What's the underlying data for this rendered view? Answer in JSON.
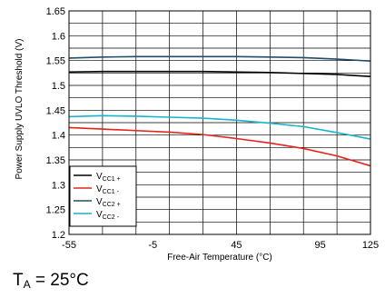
{
  "chart_data": {
    "type": "line",
    "xlabel": "Free-Air Temperature (°C)",
    "ylabel": "Power Supply UVLO Threshold (V)",
    "xlim": [
      -55,
      125
    ],
    "ylim": [
      1.2,
      1.65
    ],
    "grid": true,
    "legend_placement": "bottom-left",
    "x_ticks": [
      -55,
      -5,
      45,
      95,
      125
    ],
    "y_ticks": [
      1.2,
      1.25,
      1.3,
      1.35,
      1.4,
      1.45,
      1.5,
      1.55,
      1.6,
      1.65
    ],
    "series": [
      {
        "name_main": "V",
        "name_sub": "CC1 +",
        "color": "#000000",
        "x": [
          -55,
          -35,
          -15,
          5,
          25,
          45,
          65,
          85,
          105,
          125
        ],
        "values": [
          1.527,
          1.528,
          1.528,
          1.528,
          1.528,
          1.527,
          1.526,
          1.524,
          1.522,
          1.518
        ]
      },
      {
        "name_main": "V",
        "name_sub": "CC1 -",
        "color": "#e8231b",
        "x": [
          -55,
          -35,
          -15,
          5,
          25,
          45,
          65,
          85,
          105,
          125
        ],
        "values": [
          1.415,
          1.412,
          1.409,
          1.406,
          1.401,
          1.393,
          1.384,
          1.373,
          1.358,
          1.338
        ]
      },
      {
        "name_main": "V",
        "name_sub": "CC2 +",
        "color": "#1f4e6b",
        "x": [
          -55,
          -35,
          -15,
          5,
          25,
          45,
          65,
          85,
          105,
          125
        ],
        "values": [
          1.555,
          1.557,
          1.558,
          1.558,
          1.558,
          1.558,
          1.557,
          1.556,
          1.553,
          1.549
        ]
      },
      {
        "name_main": "V",
        "name_sub": "CC2 -",
        "color": "#18b4cc",
        "x": [
          -55,
          -35,
          -15,
          5,
          25,
          45,
          65,
          85,
          105,
          125
        ],
        "values": [
          1.437,
          1.439,
          1.438,
          1.436,
          1.434,
          1.43,
          1.424,
          1.417,
          1.405,
          1.392
        ]
      }
    ]
  },
  "caption": {
    "main": "T",
    "sub": "A",
    "rest": " = 25°C"
  }
}
